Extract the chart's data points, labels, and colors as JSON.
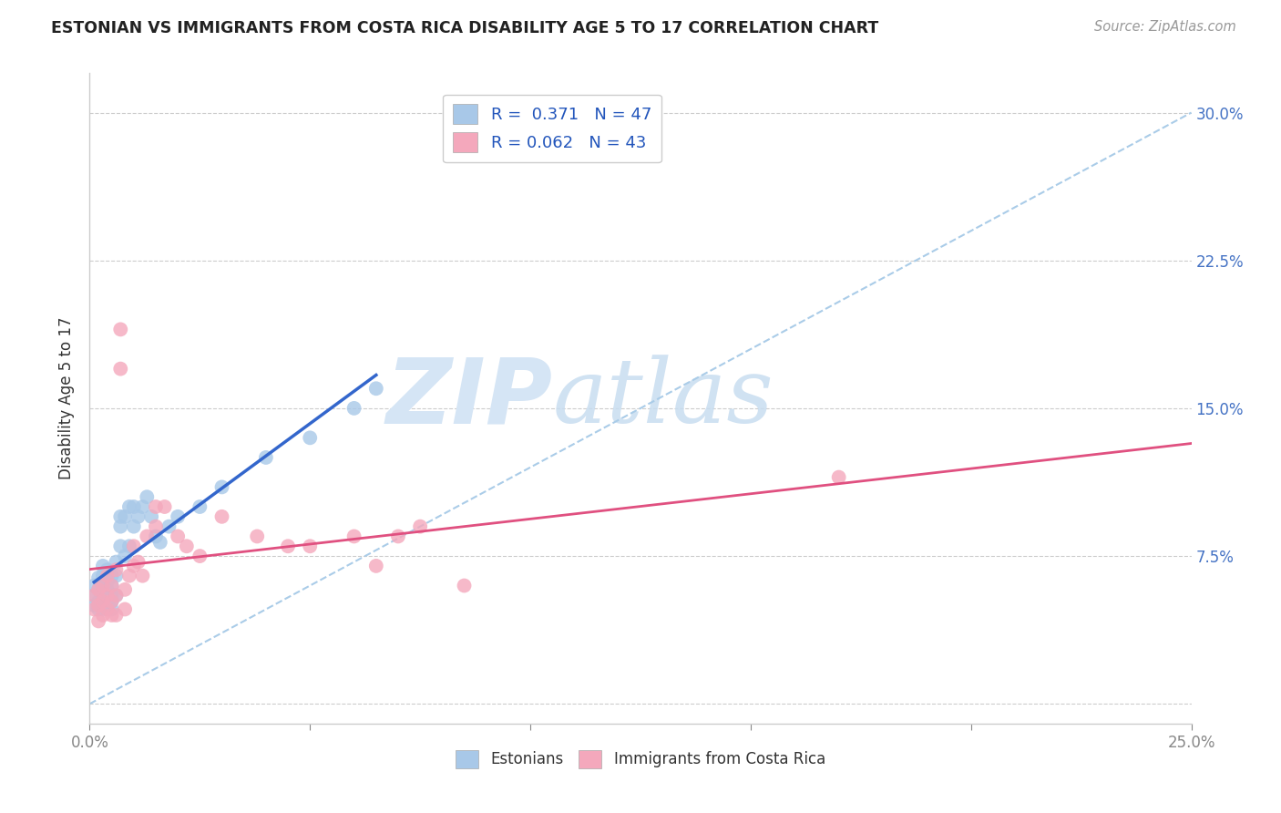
{
  "title": "ESTONIAN VS IMMIGRANTS FROM COSTA RICA DISABILITY AGE 5 TO 17 CORRELATION CHART",
  "source": "Source: ZipAtlas.com",
  "ylabel": "Disability Age 5 to 17",
  "xlim": [
    0.0,
    0.25
  ],
  "ylim": [
    -0.01,
    0.32
  ],
  "xticks": [
    0.0,
    0.05,
    0.1,
    0.15,
    0.2,
    0.25
  ],
  "xticklabels": [
    "0.0%",
    "",
    "",
    "",
    "",
    "25.0%"
  ],
  "yticks": [
    0.0,
    0.075,
    0.15,
    0.225,
    0.3
  ],
  "yticklabels": [
    "",
    "7.5%",
    "15.0%",
    "22.5%",
    "30.0%"
  ],
  "grid_color": "#cccccc",
  "background_color": "#ffffff",
  "watermark_zip": "ZIP",
  "watermark_atlas": "atlas",
  "watermark_color": "#d5e5f5",
  "legend_R1": "R =  0.371",
  "legend_N1": "N = 47",
  "legend_R2": "R = 0.062",
  "legend_N2": "N = 43",
  "blue_color": "#a8c8e8",
  "blue_line_color": "#3366cc",
  "pink_color": "#f4a8bc",
  "pink_line_color": "#e05080",
  "dashed_line_color": "#aacce8",
  "estonians_x": [
    0.001,
    0.001,
    0.001,
    0.002,
    0.002,
    0.002,
    0.002,
    0.003,
    0.003,
    0.003,
    0.003,
    0.003,
    0.004,
    0.004,
    0.004,
    0.004,
    0.005,
    0.005,
    0.005,
    0.005,
    0.005,
    0.006,
    0.006,
    0.006,
    0.007,
    0.007,
    0.007,
    0.008,
    0.008,
    0.009,
    0.009,
    0.01,
    0.01,
    0.011,
    0.012,
    0.013,
    0.014,
    0.015,
    0.016,
    0.018,
    0.02,
    0.025,
    0.03,
    0.04,
    0.05,
    0.06,
    0.065
  ],
  "estonians_y": [
    0.05,
    0.055,
    0.06,
    0.048,
    0.052,
    0.058,
    0.064,
    0.048,
    0.055,
    0.06,
    0.065,
    0.07,
    0.05,
    0.058,
    0.062,
    0.068,
    0.048,
    0.052,
    0.055,
    0.06,
    0.065,
    0.055,
    0.065,
    0.072,
    0.08,
    0.09,
    0.095,
    0.075,
    0.095,
    0.08,
    0.1,
    0.09,
    0.1,
    0.095,
    0.1,
    0.105,
    0.095,
    0.085,
    0.082,
    0.09,
    0.095,
    0.1,
    0.11,
    0.125,
    0.135,
    0.15,
    0.16
  ],
  "costa_rica_x": [
    0.001,
    0.001,
    0.002,
    0.002,
    0.002,
    0.003,
    0.003,
    0.003,
    0.004,
    0.004,
    0.004,
    0.005,
    0.005,
    0.005,
    0.006,
    0.006,
    0.006,
    0.007,
    0.007,
    0.008,
    0.008,
    0.009,
    0.01,
    0.01,
    0.011,
    0.012,
    0.013,
    0.015,
    0.015,
    0.017,
    0.02,
    0.022,
    0.025,
    0.03,
    0.038,
    0.045,
    0.05,
    0.06,
    0.065,
    0.07,
    0.075,
    0.085,
    0.17
  ],
  "costa_rica_y": [
    0.048,
    0.055,
    0.042,
    0.05,
    0.058,
    0.045,
    0.052,
    0.06,
    0.048,
    0.055,
    0.065,
    0.045,
    0.052,
    0.06,
    0.045,
    0.055,
    0.068,
    0.17,
    0.19,
    0.048,
    0.058,
    0.065,
    0.07,
    0.08,
    0.072,
    0.065,
    0.085,
    0.09,
    0.1,
    0.1,
    0.085,
    0.08,
    0.075,
    0.095,
    0.085,
    0.08,
    0.08,
    0.085,
    0.07,
    0.085,
    0.09,
    0.06,
    0.115
  ]
}
